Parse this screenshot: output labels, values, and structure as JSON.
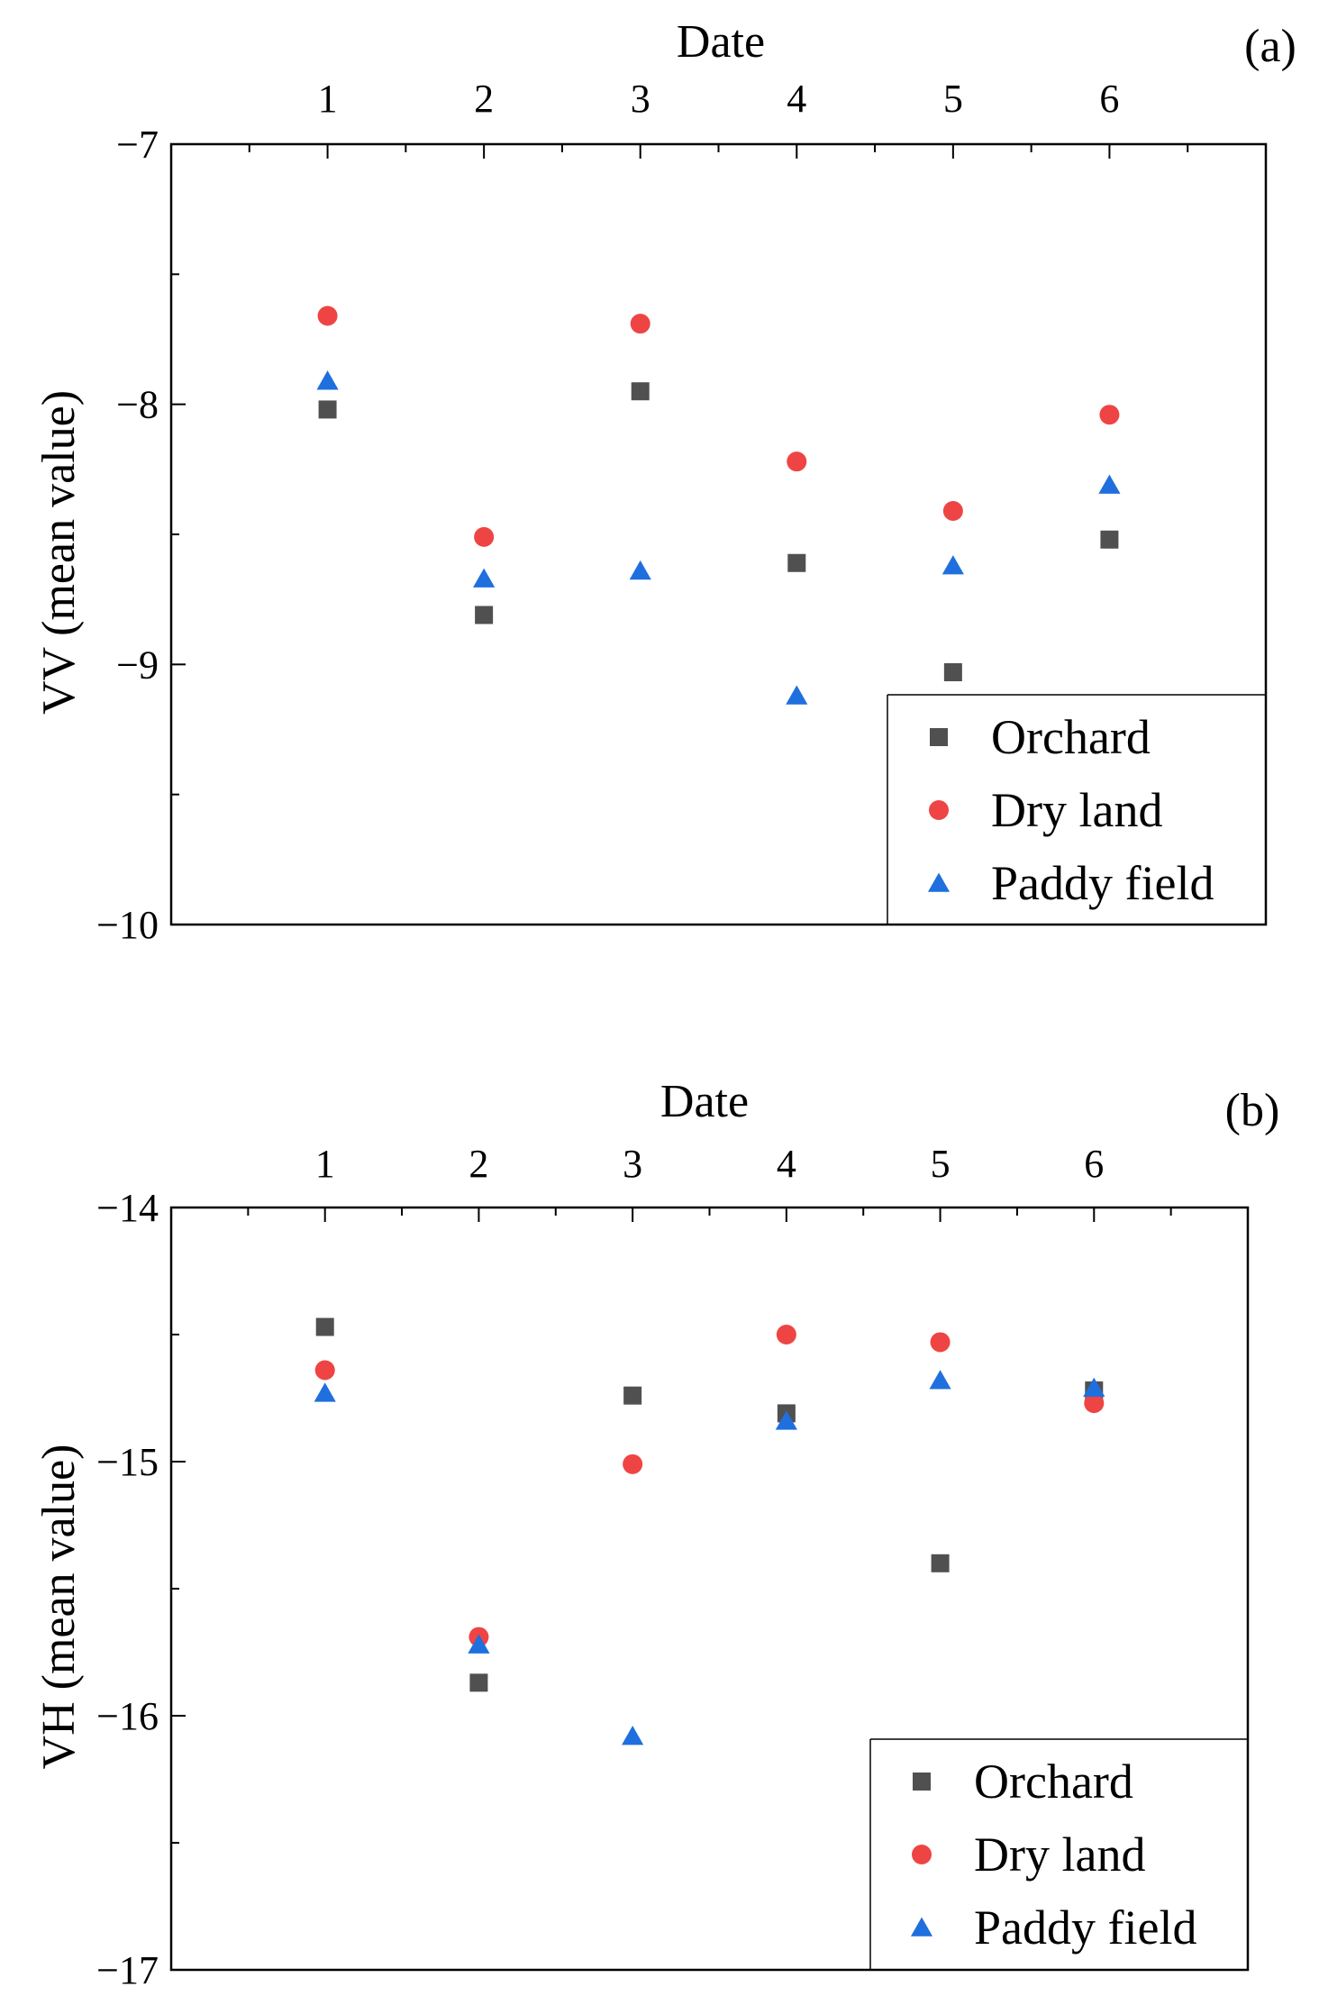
{
  "chart_data": [
    {
      "type": "scatter",
      "panel": "(a)",
      "xlabel": "Date",
      "ylabel": "VV (mean value)",
      "x": [
        1,
        2,
        3,
        4,
        5,
        6
      ],
      "xlim": [
        0,
        7
      ],
      "ylim": [
        -10,
        -7
      ],
      "yticks": [
        -10,
        -9,
        -8,
        -7
      ],
      "ytick_labels": [
        "−10",
        "−9",
        "−8",
        "−7"
      ],
      "legend_position": "bottom-right",
      "series": [
        {
          "name": "Orchard",
          "marker": "square",
          "color": "#505050",
          "values": [
            -8.02,
            -8.81,
            -7.95,
            -8.61,
            -9.03,
            -8.52
          ]
        },
        {
          "name": "Dry land",
          "marker": "circle",
          "color": "#ef4444",
          "values": [
            -7.66,
            -8.51,
            -7.69,
            -8.22,
            -8.41,
            -8.04
          ]
        },
        {
          "name": "Paddy field",
          "marker": "triangle",
          "color": "#1f6fde",
          "values": [
            -7.91,
            -8.67,
            -8.64,
            -9.12,
            -8.62,
            -8.31
          ]
        }
      ]
    },
    {
      "type": "scatter",
      "panel": "(b)",
      "xlabel": "Date",
      "ylabel": "VH (mean value)",
      "x": [
        1,
        2,
        3,
        4,
        5,
        6
      ],
      "xlim": [
        0,
        7
      ],
      "ylim": [
        -17,
        -14
      ],
      "yticks": [
        -17,
        -16,
        -15,
        -14
      ],
      "ytick_labels": [
        "−17",
        "−16",
        "−15",
        "−14"
      ],
      "legend_position": "bottom-right",
      "series": [
        {
          "name": "Orchard",
          "marker": "square",
          "color": "#505050",
          "values": [
            -14.47,
            -15.87,
            -14.74,
            -14.81,
            -15.4,
            -14.72
          ]
        },
        {
          "name": "Dry land",
          "marker": "circle",
          "color": "#ef4444",
          "values": [
            -14.64,
            -15.69,
            -15.01,
            -14.5,
            -14.53,
            -14.77
          ]
        },
        {
          "name": "Paddy field",
          "marker": "triangle",
          "color": "#1f6fde",
          "values": [
            -14.73,
            -15.72,
            -16.08,
            -14.84,
            -14.68,
            -14.71
          ]
        }
      ]
    }
  ]
}
